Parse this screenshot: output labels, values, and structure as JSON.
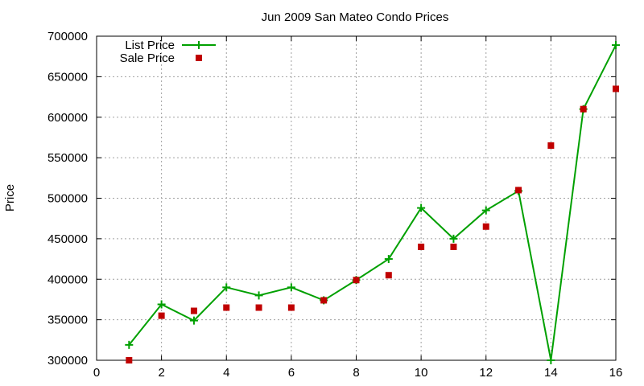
{
  "chart_data": {
    "type": "line",
    "title": "Jun 2009 San Mateo Condo Prices",
    "xlabel": "",
    "ylabel": "Price",
    "xlim": [
      0,
      16
    ],
    "ylim": [
      300000,
      700000
    ],
    "x_ticks": [
      0,
      2,
      4,
      6,
      8,
      10,
      12,
      14,
      16
    ],
    "y_ticks": [
      300000,
      350000,
      400000,
      450000,
      500000,
      550000,
      600000,
      650000,
      700000
    ],
    "grid": true,
    "legend_position": "top-left",
    "series": [
      {
        "name": "List Price",
        "style": "line-with-plus-markers",
        "color": "#00a000",
        "x": [
          1,
          2,
          3,
          4,
          5,
          6,
          7,
          8,
          9,
          10,
          11,
          12,
          13,
          14,
          15,
          16
        ],
        "values": [
          319000,
          369000,
          349000,
          390000,
          380000,
          390000,
          374000,
          399000,
          425000,
          488000,
          450000,
          485000,
          509000,
          300000,
          610000,
          689000
        ]
      },
      {
        "name": "Sale Price",
        "style": "square-markers",
        "color": "#c00000",
        "x": [
          1,
          2,
          3,
          4,
          5,
          6,
          7,
          8,
          9,
          10,
          11,
          12,
          13,
          14,
          15,
          16
        ],
        "values": [
          300000,
          355000,
          361000,
          365000,
          365000,
          365000,
          374000,
          399000,
          405000,
          440000,
          440000,
          465000,
          510000,
          565000,
          610000,
          635000
        ]
      }
    ]
  }
}
